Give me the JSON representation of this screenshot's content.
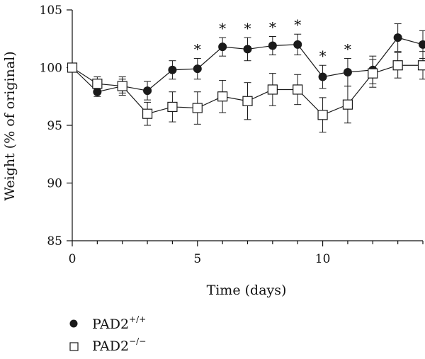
{
  "chart_data": {
    "type": "line",
    "title": "",
    "xlabel": "Time (days)",
    "ylabel": "Weight (% of original)",
    "xlim": [
      0,
      14
    ],
    "ylim": [
      85,
      105
    ],
    "xticks": [
      0,
      5,
      10
    ],
    "yticks": [
      85,
      90,
      95,
      100,
      105
    ],
    "significance_marker": "*",
    "significant_days": [
      5,
      6,
      7,
      8,
      9,
      10,
      11
    ],
    "legend_placement": "bottom-left",
    "grid": false,
    "series": [
      {
        "name": "PAD2",
        "name_superscript": "+/+",
        "marker": "filled-circle",
        "color": "#1a1a1a",
        "x": [
          0,
          1,
          2,
          3,
          4,
          5,
          6,
          7,
          8,
          9,
          10,
          11,
          12,
          13,
          14
        ],
        "y": [
          100,
          97.9,
          98.4,
          98.0,
          99.8,
          99.9,
          101.8,
          101.6,
          101.9,
          102.0,
          99.2,
          99.6,
          99.8,
          102.6,
          102.0
        ],
        "err": [
          0,
          0.4,
          0.8,
          0.8,
          0.8,
          0.9,
          0.8,
          1.0,
          0.8,
          0.9,
          1.0,
          1.2,
          1.2,
          1.2,
          1.2
        ]
      },
      {
        "name": "PAD2",
        "name_superscript": "−/−",
        "marker": "open-square",
        "color": "#1a1a1a",
        "x": [
          0,
          1,
          2,
          3,
          4,
          5,
          6,
          7,
          8,
          9,
          10,
          11,
          12,
          13,
          14
        ],
        "y": [
          100,
          98.6,
          98.4,
          96.0,
          96.6,
          96.5,
          97.5,
          97.1,
          98.1,
          98.1,
          95.9,
          96.8,
          99.5,
          100.2,
          100.2
        ],
        "err": [
          0,
          0.6,
          0.6,
          1.0,
          1.3,
          1.4,
          1.4,
          1.6,
          1.4,
          1.3,
          1.5,
          1.6,
          1.2,
          1.1,
          1.2
        ]
      }
    ]
  }
}
